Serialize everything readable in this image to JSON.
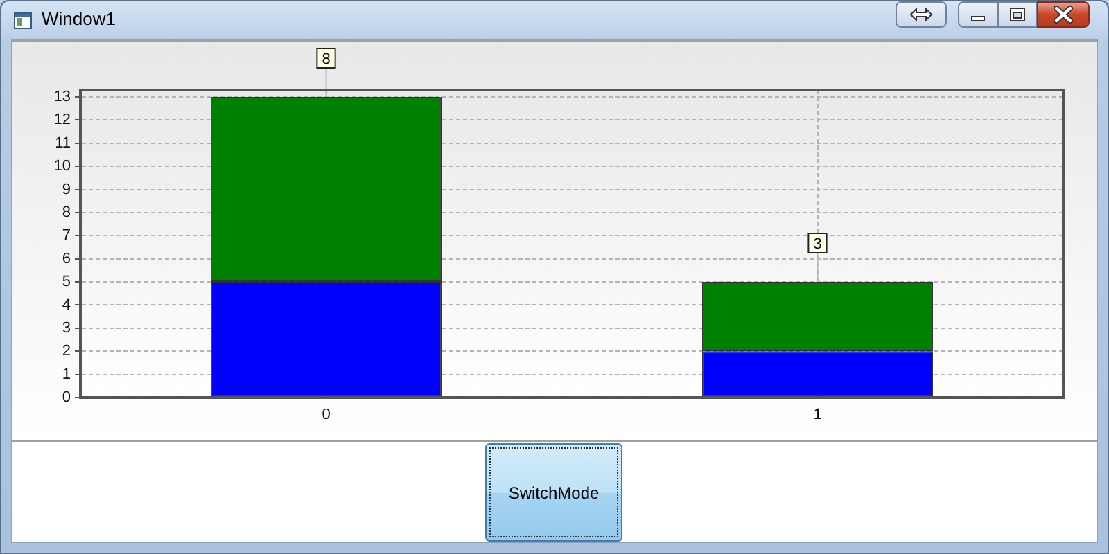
{
  "chart_data": {
    "type": "bar",
    "categories": [
      "0",
      "1"
    ],
    "stacked": true,
    "series": [
      {
        "color": "#0000ff",
        "values": [
          5,
          2
        ]
      },
      {
        "color": "#008000",
        "values": [
          8,
          3
        ],
        "value_labels": [
          "8",
          "3"
        ]
      }
    ],
    "ylim": [
      0,
      13.3
    ],
    "yticks": [
      0,
      1,
      2,
      3,
      4,
      5,
      6,
      7,
      8,
      9,
      10,
      11,
      12,
      13
    ],
    "grid": true,
    "legend": false,
    "annotations": [
      "Window1",
      "SwitchMode"
    ]
  }
}
